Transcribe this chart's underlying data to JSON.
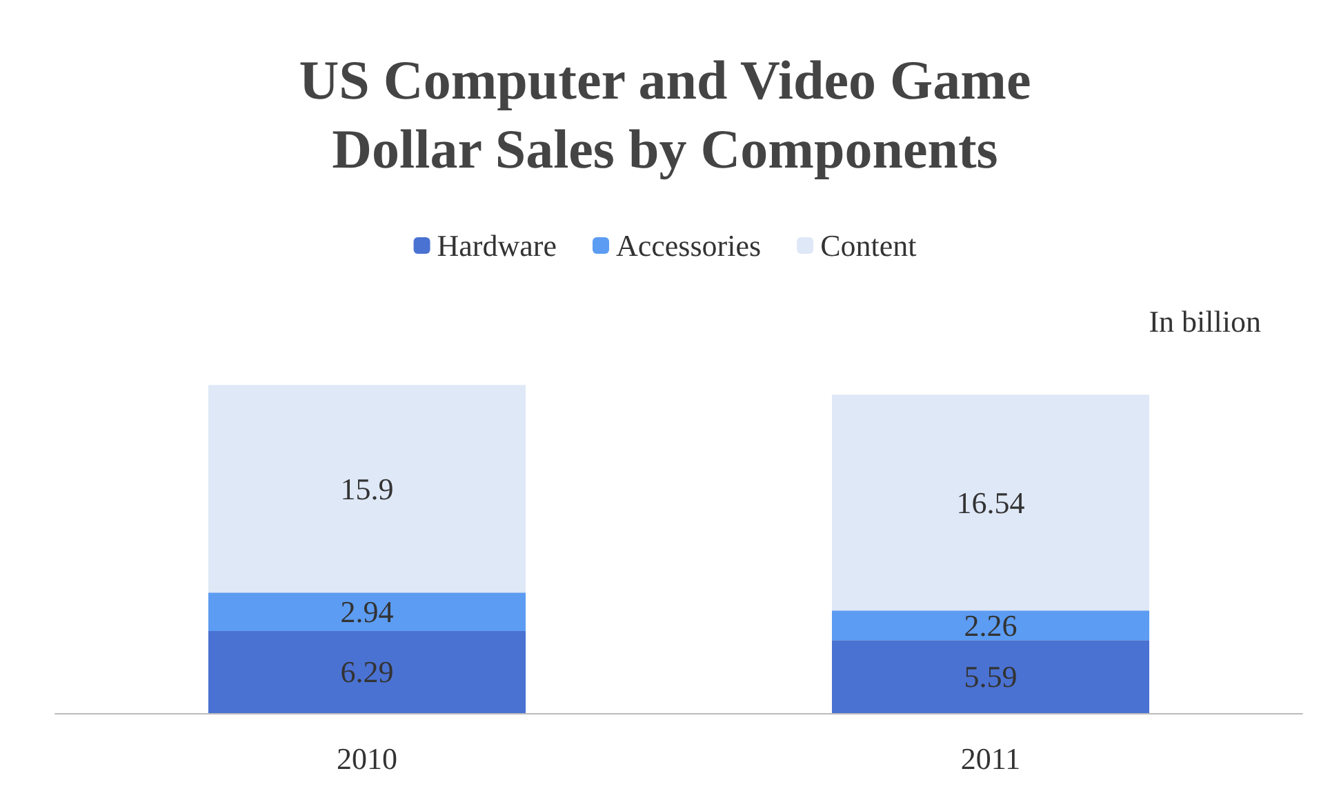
{
  "chart_data": {
    "type": "bar",
    "title": "US Computer and Video Game\nDollar Sales by Components",
    "categories": [
      "2010",
      "2011"
    ],
    "stacked": true,
    "data_labels": true,
    "legend": "top",
    "series": [
      {
        "name": "Hardware",
        "color": "#4a72d2",
        "values": [
          6.29,
          5.59
        ]
      },
      {
        "name": "Accessories",
        "color": "#5c9cf2",
        "values": [
          2.94,
          2.26
        ]
      },
      {
        "name": "Content",
        "color": "#dfe8f6",
        "values": [
          15.9,
          16.54
        ]
      }
    ],
    "annotations": [
      "In billion"
    ]
  }
}
